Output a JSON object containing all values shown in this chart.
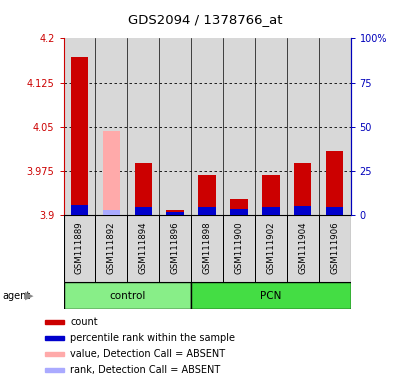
{
  "title": "GDS2094 / 1378766_at",
  "samples": [
    "GSM111889",
    "GSM111892",
    "GSM111894",
    "GSM111896",
    "GSM111898",
    "GSM111900",
    "GSM111902",
    "GSM111904",
    "GSM111906"
  ],
  "ylim_left": [
    3.9,
    4.2
  ],
  "ylim_right": [
    0,
    100
  ],
  "yticks_left": [
    3.9,
    3.975,
    4.05,
    4.125,
    4.2
  ],
  "yticks_right": [
    0,
    25,
    50,
    75,
    100
  ],
  "ytick_labels_left": [
    "3.9",
    "3.975",
    "4.05",
    "4.125",
    "4.2"
  ],
  "ytick_labels_right": [
    "0",
    "25",
    "50",
    "75",
    "100%"
  ],
  "count_values": [
    4.168,
    3.9,
    3.988,
    3.908,
    3.968,
    3.928,
    3.968,
    3.988,
    4.008
  ],
  "rank_values_pct": [
    5.5,
    3.0,
    4.5,
    1.5,
    4.5,
    3.5,
    4.5,
    5.0,
    4.5
  ],
  "absent_value": [
    null,
    4.043,
    null,
    null,
    null,
    null,
    null,
    null,
    null
  ],
  "absent_rank_pct": [
    null,
    1.5,
    null,
    null,
    null,
    null,
    null,
    null,
    null
  ],
  "base_value": 3.9,
  "bar_width": 0.55,
  "color_red": "#cc0000",
  "color_blue": "#0000cc",
  "color_pink": "#ffaaaa",
  "color_lightblue": "#aaaaff",
  "color_control_bg": "#88ee88",
  "color_pcn_bg": "#44dd44",
  "color_sample_bg": "#d8d8d8",
  "left_axis_color": "#cc0000",
  "right_axis_color": "#0000bb"
}
